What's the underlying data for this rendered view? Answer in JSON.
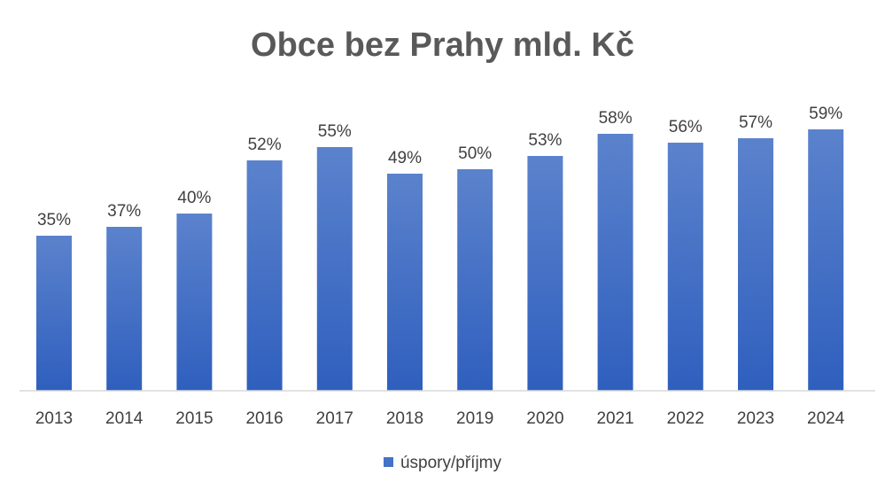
{
  "chart_data": {
    "type": "bar",
    "title": "Obce bez Prahy mld. Kč",
    "categories": [
      "2013",
      "2014",
      "2015",
      "2016",
      "2017",
      "2018",
      "2019",
      "2020",
      "2021",
      "2022",
      "2023",
      "2024"
    ],
    "series": [
      {
        "name": "úspory/příjmy",
        "values": [
          35,
          37,
          40,
          52,
          55,
          49,
          50,
          53,
          58,
          56,
          57,
          59
        ],
        "labels": [
          "35%",
          "37%",
          "40%",
          "52%",
          "55%",
          "49%",
          "50%",
          "53%",
          "58%",
          "56%",
          "57%",
          "59%"
        ]
      }
    ],
    "value_unit": "%",
    "ylim": [
      0,
      60
    ],
    "grid": false,
    "legend_position": "bottom",
    "colors": {
      "bar_top": "#5b82cc",
      "bar_bottom": "#2f5fbe",
      "axis": "#d9d9d9",
      "text": "#404040"
    }
  }
}
